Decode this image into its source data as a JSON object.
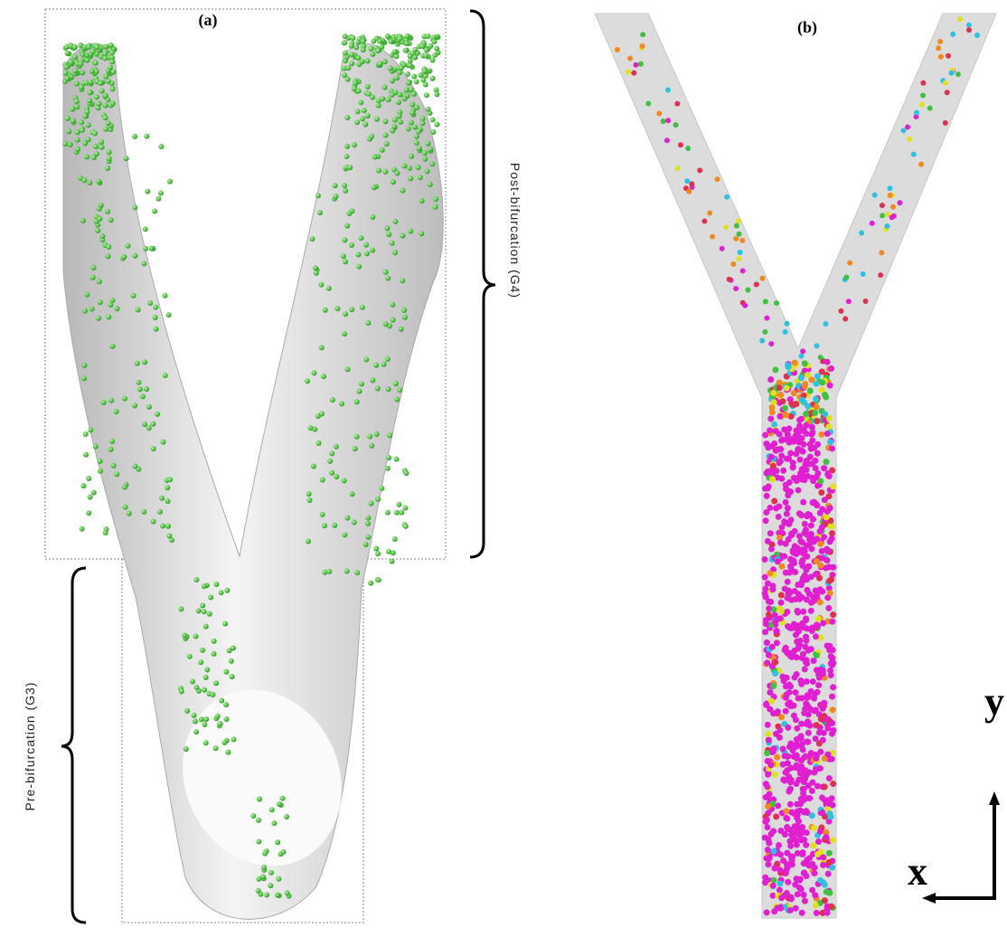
{
  "panels": [
    {
      "label": "(a)",
      "post_label": "Post-bifurcation (G4)",
      "pre_label": "Pre-bifurcation (G3)"
    },
    {
      "label": "(b)",
      "axis_y": "y",
      "axis_x": "x"
    }
  ]
}
